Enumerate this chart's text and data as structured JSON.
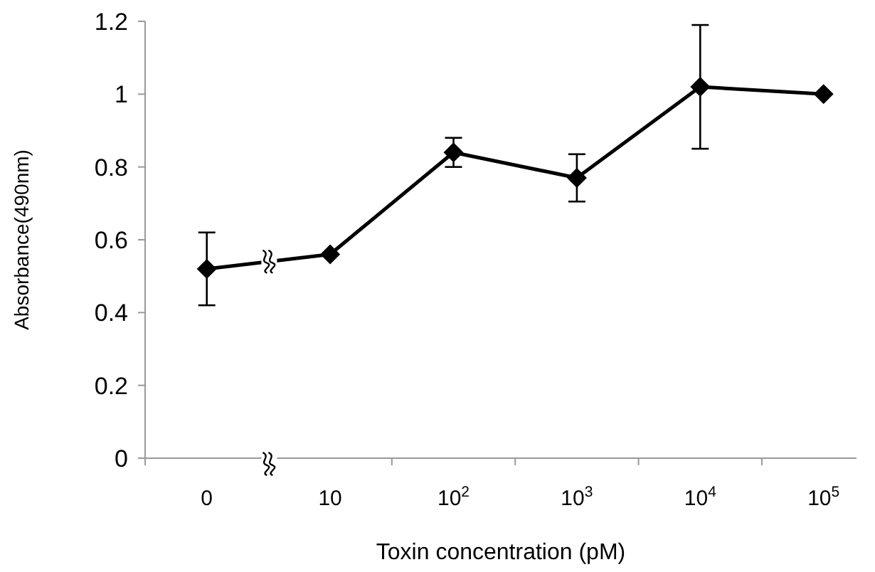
{
  "chart_data": {
    "type": "line",
    "xlabel": "Toxin concentration (pM)",
    "ylabel": "Absorbance(490nm)",
    "categories": [
      "0",
      "10",
      "10$^{2}$",
      "10$^{3}$",
      "10$^{4}$",
      "10$^{5}$"
    ],
    "series": [
      {
        "color": "#000000",
        "values": [
          0.52,
          0.56,
          0.84,
          0.77,
          1.02,
          1.0
        ],
        "errors": [
          0.1,
          null,
          0.04,
          0.065,
          0.17,
          null
        ]
      }
    ],
    "ylim": [
      0,
      1.2
    ],
    "yticks": [
      0,
      0.2,
      0.4,
      0.6,
      0.8,
      1,
      1.2
    ],
    "marker": "diamond",
    "line_style": "solid",
    "grid": false
  }
}
